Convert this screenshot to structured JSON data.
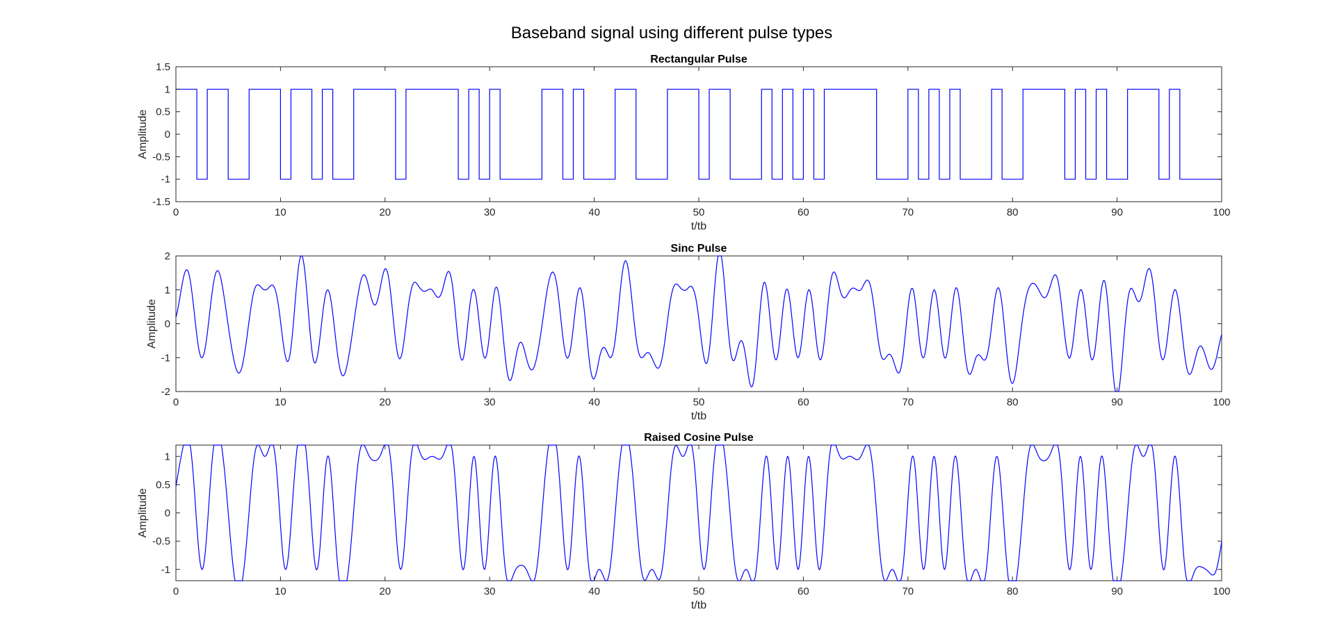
{
  "figure": {
    "title": "Baseband signal using different pulse types"
  },
  "chart_data": [
    {
      "type": "line",
      "title": "Rectangular Pulse",
      "xlabel": "t/tb",
      "ylabel": "Amplitude",
      "xlim": [
        0,
        100
      ],
      "ylim": [
        -1.5,
        1.5
      ],
      "xticks": [
        "0",
        "10",
        "20",
        "30",
        "40",
        "50",
        "60",
        "70",
        "80",
        "90",
        "100"
      ],
      "yticks": [
        "-1.5",
        "-1",
        "-0.5",
        "0",
        "0.5",
        "1",
        "1.5"
      ],
      "grid": false,
      "color": "#0000FF",
      "pulse": "rect",
      "bits": [
        1,
        1,
        -1,
        1,
        1,
        -1,
        -1,
        1,
        1,
        1,
        -1,
        1,
        1,
        -1,
        1,
        -1,
        -1,
        1,
        1,
        1,
        1,
        -1,
        1,
        1,
        1,
        1,
        1,
        -1,
        1,
        -1,
        1,
        -1,
        -1,
        -1,
        -1,
        1,
        1,
        -1,
        1,
        -1,
        -1,
        -1,
        1,
        1,
        -1,
        -1,
        -1,
        1,
        1,
        1,
        -1,
        1,
        1,
        -1,
        -1,
        -1,
        1,
        -1,
        1,
        -1,
        1,
        -1,
        1,
        1,
        1,
        1,
        1,
        -1,
        -1,
        -1,
        1,
        -1,
        1,
        -1,
        1,
        -1,
        -1,
        -1,
        1,
        -1,
        -1,
        1,
        1,
        1,
        1,
        -1,
        1,
        -1,
        1,
        -1,
        -1,
        1,
        1,
        1,
        -1,
        1,
        -1,
        -1,
        -1,
        -1
      ]
    },
    {
      "type": "line",
      "title": "Sinc Pulse",
      "xlabel": "t/tb",
      "ylabel": "Amplitude",
      "xlim": [
        0,
        100
      ],
      "ylim": [
        -2,
        2
      ],
      "xticks": [
        "0",
        "10",
        "20",
        "30",
        "40",
        "50",
        "60",
        "70",
        "80",
        "90",
        "100"
      ],
      "yticks": [
        "-2",
        "-1",
        "0",
        "1",
        "2"
      ],
      "grid": false,
      "color": "#0000FF",
      "pulse": "sinc",
      "bits": [
        1,
        1,
        -1,
        1,
        1,
        -1,
        -1,
        1,
        1,
        1,
        -1,
        1,
        1,
        -1,
        1,
        -1,
        -1,
        1,
        1,
        1,
        1,
        -1,
        1,
        1,
        1,
        1,
        1,
        -1,
        1,
        -1,
        1,
        -1,
        -1,
        -1,
        -1,
        1,
        1,
        -1,
        1,
        -1,
        -1,
        -1,
        1,
        1,
        -1,
        -1,
        -1,
        1,
        1,
        1,
        -1,
        1,
        1,
        -1,
        -1,
        -1,
        1,
        -1,
        1,
        -1,
        1,
        -1,
        1,
        1,
        1,
        1,
        1,
        -1,
        -1,
        -1,
        1,
        -1,
        1,
        -1,
        1,
        -1,
        -1,
        -1,
        1,
        -1,
        -1,
        1,
        1,
        1,
        1,
        -1,
        1,
        -1,
        1,
        -1,
        -1,
        1,
        1,
        1,
        -1,
        1,
        -1,
        -1,
        -1,
        -1
      ]
    },
    {
      "type": "line",
      "title": "Raised Cosine Pulse",
      "xlabel": "t/tb",
      "ylabel": "Amplitude",
      "xlim": [
        0,
        100
      ],
      "ylim": [
        -1.2,
        1.2
      ],
      "xticks": [
        "0",
        "10",
        "20",
        "30",
        "40",
        "50",
        "60",
        "70",
        "80",
        "90",
        "100"
      ],
      "yticks": [
        "-1",
        "-0.5",
        "0",
        "0.5",
        "1"
      ],
      "grid": false,
      "color": "#0000FF",
      "pulse": "raised-cosine",
      "bits": [
        1,
        1,
        -1,
        1,
        1,
        -1,
        -1,
        1,
        1,
        1,
        -1,
        1,
        1,
        -1,
        1,
        -1,
        -1,
        1,
        1,
        1,
        1,
        -1,
        1,
        1,
        1,
        1,
        1,
        -1,
        1,
        -1,
        1,
        -1,
        -1,
        -1,
        -1,
        1,
        1,
        -1,
        1,
        -1,
        -1,
        -1,
        1,
        1,
        -1,
        -1,
        -1,
        1,
        1,
        1,
        -1,
        1,
        1,
        -1,
        -1,
        -1,
        1,
        -1,
        1,
        -1,
        1,
        -1,
        1,
        1,
        1,
        1,
        1,
        -1,
        -1,
        -1,
        1,
        -1,
        1,
        -1,
        1,
        -1,
        -1,
        -1,
        1,
        -1,
        -1,
        1,
        1,
        1,
        1,
        -1,
        1,
        -1,
        1,
        -1,
        -1,
        1,
        1,
        1,
        -1,
        1,
        -1,
        -1,
        -1,
        -1
      ]
    }
  ]
}
